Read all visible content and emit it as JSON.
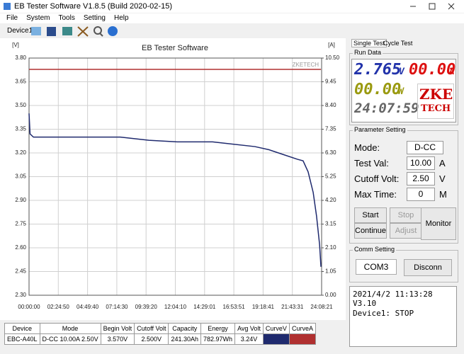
{
  "window": {
    "title": "EB Tester Software V1.8.5 (Build 2020-02-15)",
    "menu": [
      "File",
      "System",
      "Tools",
      "Setting",
      "Help"
    ],
    "device": "Device1"
  },
  "chart_data": {
    "type": "line",
    "title": "EB Tester Software",
    "ylabel": "[V]",
    "y2label": "[A]",
    "watermark": "ZKETECH",
    "grid": true,
    "x": [
      0,
      300,
      1300,
      12400,
      27100,
      35600,
      44000,
      54500,
      58700,
      67100,
      71300,
      75500,
      79700,
      81400,
      82900,
      84400,
      85400,
      86300,
      86700
    ],
    "series": [
      {
        "color": "#1f2a6e",
        "values": [
          3.45,
          3.32,
          3.3,
          3.3,
          3.3,
          3.28,
          3.27,
          3.27,
          3.26,
          3.24,
          3.22,
          3.19,
          3.16,
          3.15,
          3.08,
          2.95,
          2.8,
          2.62,
          2.48
        ]
      },
      {
        "color": "#b03030",
        "axis": "y2",
        "values": [
          10.0,
          10.0,
          10.0,
          10.0,
          10.0,
          10.0,
          10.0,
          10.0,
          10.0,
          10.0,
          10.0,
          10.0,
          10.0,
          10.0,
          10.0,
          10.0,
          10.0,
          10.0,
          10.0
        ]
      }
    ],
    "xlim": [
      0,
      86901
    ],
    "xticks": [
      {
        "value": 0,
        "label": "00:00:00"
      },
      {
        "value": 8690,
        "label": "02:24:50"
      },
      {
        "value": 17380,
        "label": "04:49:40"
      },
      {
        "value": 26070,
        "label": "07:14:30"
      },
      {
        "value": 34760,
        "label": "09:39:20"
      },
      {
        "value": 43450,
        "label": "12:04:10"
      },
      {
        "value": 52141,
        "label": "14:29:01"
      },
      {
        "value": 60831,
        "label": "16:53:51"
      },
      {
        "value": 69521,
        "label": "19:18:41"
      },
      {
        "value": 78211,
        "label": "21:43:31"
      },
      {
        "value": 86901,
        "label": "24:08:21"
      }
    ],
    "ylim": [
      2.3,
      3.8
    ],
    "yticks": [
      {
        "value": 2.3,
        "label": "2.30"
      },
      2.45,
      {
        "value": 2.6,
        "label": "2.60"
      },
      2.75,
      {
        "value": 2.9,
        "label": "2.90"
      },
      3.05,
      {
        "value": 3.2,
        "label": "3.20"
      },
      3.35,
      {
        "value": 3.5,
        "label": "3.50"
      },
      3.65,
      {
        "value": 3.8,
        "label": "3.80"
      }
    ],
    "y2lim": [
      0,
      10.5
    ],
    "y2ticks": [
      {
        "value": 0,
        "label": "0.00"
      },
      1.05,
      {
        "value": 2.1,
        "label": "2.10"
      },
      3.15,
      {
        "value": 4.2,
        "label": "4.20"
      },
      5.25,
      {
        "value": 6.3,
        "label": "6.30"
      },
      7.35,
      {
        "value": 8.4,
        "label": "8.40"
      },
      9.45,
      {
        "value": 10.5,
        "label": "10.50"
      }
    ]
  },
  "panel": {
    "tabs": [
      "Single Test",
      "Cycle Test"
    ],
    "run_data": {
      "label": "Run Data",
      "voltage": "2.765",
      "voltage_unit": "V",
      "current": "00.00",
      "current_unit": "A",
      "power": "00.00",
      "power_unit": "W",
      "time": "24:07:59",
      "logo": [
        "ZKE",
        "TECH"
      ]
    },
    "parameters": {
      "label": "Parameter Setting",
      "rows": [
        {
          "label": "Mode:",
          "value": "D-CC"
        },
        {
          "label": "Test Val:",
          "value": "10.00",
          "unit": "A"
        },
        {
          "label": "Cutoff Volt:",
          "value": "2.50",
          "unit": "V"
        },
        {
          "label": "Max Time:",
          "value": "0",
          "unit": "M"
        }
      ]
    },
    "buttons": [
      "Start",
      "Stop",
      "Continue",
      "Adjust",
      "Monitor"
    ],
    "comm": {
      "label": "Comm Setting",
      "port": "COM3",
      "button": "Disconn"
    },
    "status": [
      "2021/4/2 11:13:28 V3.10",
      "Device1: STOP"
    ]
  },
  "table": {
    "header": [
      "Device",
      "Mode",
      "Begin Volt",
      "Cutoff Volt",
      "Capacity",
      "Energy",
      "Avg Volt",
      "CurveV",
      "CurveA"
    ],
    "rows": [
      [
        "EBC-A40L",
        "D-CC 10.00A 2.50V",
        "3.570V",
        "2.500V",
        "241.30Ah",
        "782.97Wh",
        "3.24V"
      ]
    ]
  }
}
